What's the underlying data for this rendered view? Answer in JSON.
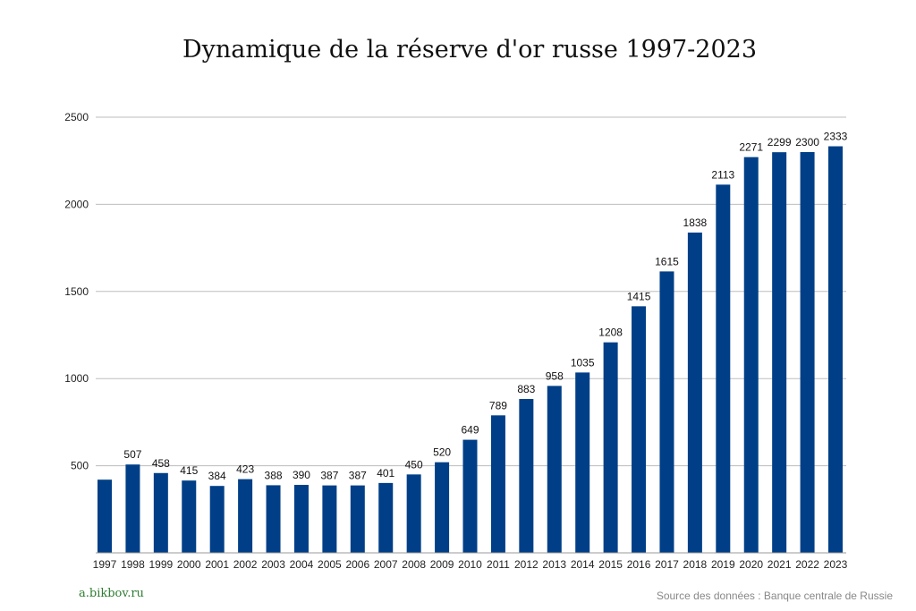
{
  "chart_data": {
    "type": "bar",
    "title": "Dynamique de la réserve d'or russe 1997-2023",
    "xlabel": "",
    "ylabel": "",
    "ylim": [
      0,
      2500
    ],
    "yticks": [
      500,
      1000,
      1500,
      2000,
      2500
    ],
    "grid": true,
    "bar_color": "#003f87",
    "categories": [
      "1997",
      "1998",
      "1999",
      "2000",
      "2001",
      "2002",
      "2003",
      "2004",
      "2005",
      "2006",
      "2007",
      "2008",
      "2009",
      "2010",
      "2011",
      "2012",
      "2013",
      "2014",
      "2015",
      "2016",
      "2017",
      "2018",
      "2019",
      "2020",
      "2021",
      "2022",
      "2023"
    ],
    "values": [
      420,
      507,
      458,
      415,
      384,
      423,
      388,
      390,
      387,
      387,
      401,
      450,
      520,
      649,
      789,
      883,
      958,
      1035,
      1208,
      1415,
      1615,
      1838,
      2113,
      2271,
      2299,
      2300,
      2333
    ],
    "data_labels": [
      "",
      "507",
      "458",
      "415",
      "384",
      "423",
      "388",
      "390",
      "387",
      "387",
      "401",
      "450",
      "520",
      "649",
      "789",
      "883",
      "958",
      "1035",
      "1208",
      "1415",
      "1615",
      "1838",
      "2113",
      "2271",
      "2299",
      "2300",
      "2333"
    ]
  },
  "footer": {
    "site": "a.bikbov.ru",
    "source": "Source des données : Banque centrale de Russie"
  }
}
